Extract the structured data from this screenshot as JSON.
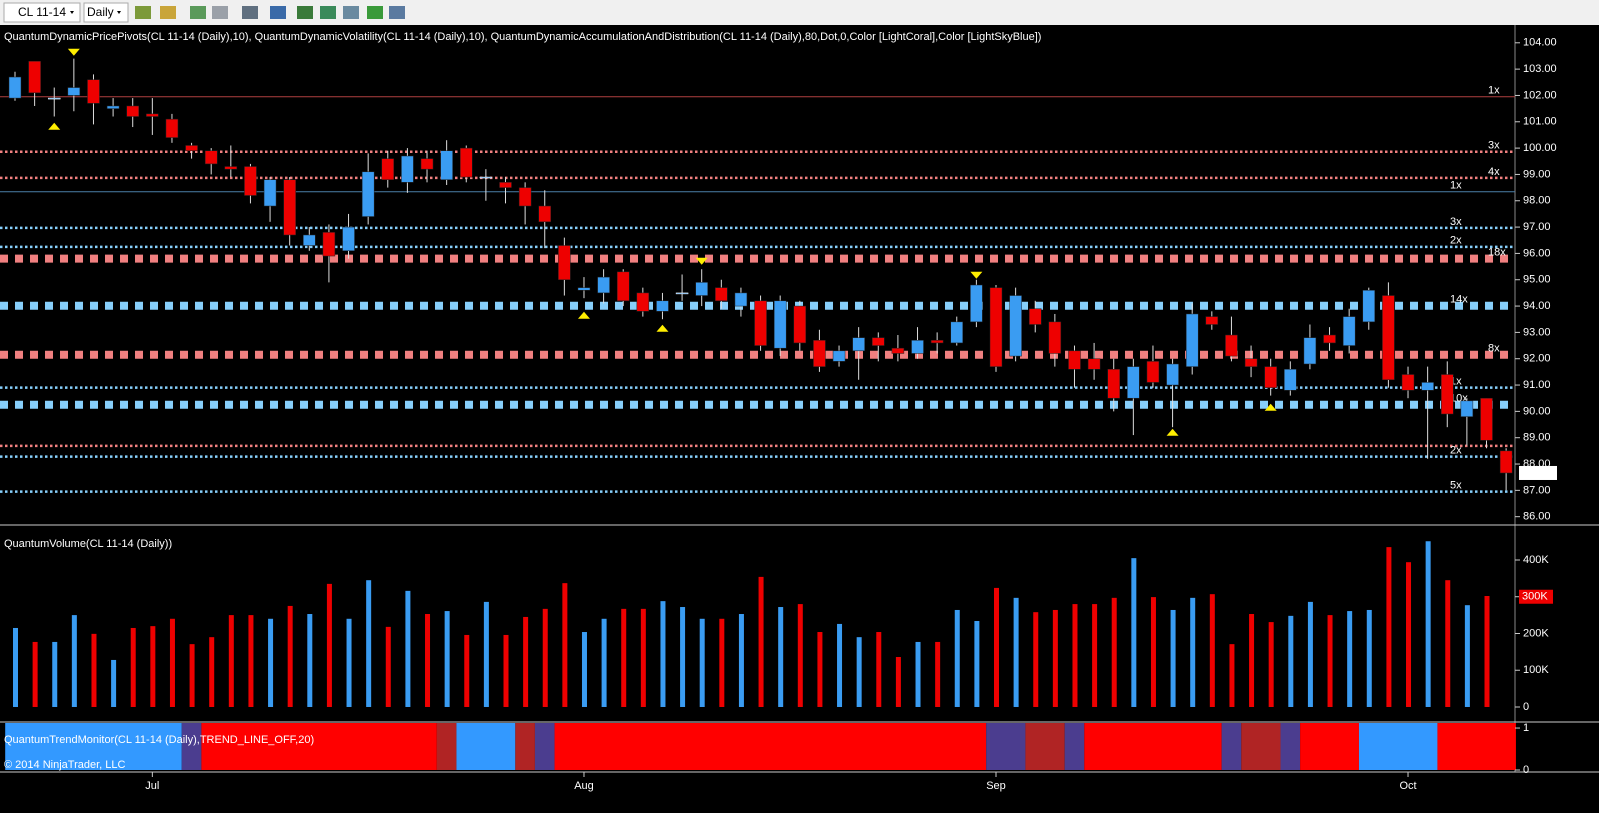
{
  "toolbar": {
    "instrument": "CL 11-14",
    "period": "Daily"
  },
  "copyright": "© 2014 NinjaTrader, LLC",
  "chart_data": [
    {
      "type": "candlestick",
      "title": "QuantumDynamicPricePivots(CL 11-14 (Daily),10), QuantumDynamicVolatility(CL 11-14 (Daily),10), QuantumDynamicAccumulationAndDistribution(CL 11-14 (Daily),80,Dot,0,Color [LightCoral],Color [LightSkyBlue])",
      "categories": [
        null,
        null,
        null,
        null,
        null,
        null,
        null,
        "Jul",
        null,
        null,
        null,
        null,
        null,
        null,
        null,
        null,
        null,
        null,
        null,
        null,
        null,
        null,
        null,
        null,
        null,
        null,
        null,
        null,
        null,
        "Aug",
        null,
        null,
        null,
        null,
        null,
        null,
        null,
        null,
        null,
        null,
        null,
        null,
        null,
        null,
        null,
        null,
        null,
        null,
        null,
        null,
        "Sep",
        null,
        null,
        null,
        null,
        null,
        null,
        null,
        null,
        null,
        null,
        null,
        null,
        null,
        null,
        null,
        null,
        null,
        null,
        null,
        null,
        "Oct",
        null,
        null,
        null,
        null,
        null
      ],
      "open": [
        101.9,
        103.3,
        101.9,
        102.0,
        102.6,
        101.5,
        101.6,
        101.3,
        101.1,
        100.1,
        99.9,
        99.3,
        99.3,
        97.8,
        98.8,
        96.3,
        96.8,
        96.1,
        97.4,
        99.6,
        98.7,
        99.6,
        98.8,
        100.0,
        98.9,
        98.7,
        98.5,
        97.8,
        96.3,
        94.6,
        94.5,
        95.3,
        94.5,
        93.8,
        94.5,
        94.4,
        94.7,
        94.0,
        94.2,
        92.4,
        94.0,
        92.7,
        91.9,
        92.3,
        92.8,
        92.4,
        92.2,
        92.7,
        92.6,
        93.4,
        94.7,
        92.1,
        93.9,
        93.4,
        92.3,
        92.0,
        91.6,
        90.5,
        91.9,
        91.0,
        91.7,
        93.6,
        92.9,
        92.0,
        91.7,
        90.8,
        91.8,
        92.9,
        92.5,
        93.4,
        94.4,
        91.4,
        90.8,
        91.4,
        89.8,
        90.5,
        88.5
      ],
      "high": [
        102.9,
        103.3,
        102.3,
        103.4,
        102.8,
        101.9,
        101.9,
        101.9,
        101.3,
        100.2,
        100.0,
        100.1,
        99.4,
        98.9,
        98.9,
        97.0,
        97.1,
        97.5,
        99.8,
        99.9,
        100.0,
        99.9,
        100.3,
        100.1,
        99.2,
        98.9,
        98.7,
        98.4,
        96.6,
        95.1,
        95.4,
        95.4,
        94.7,
        94.5,
        95.2,
        95.4,
        95.0,
        94.7,
        94.4,
        94.4,
        94.2,
        93.1,
        92.5,
        93.2,
        93.0,
        92.9,
        93.2,
        93.0,
        93.6,
        95.0,
        94.8,
        94.7,
        94.2,
        93.7,
        92.5,
        92.6,
        92.0,
        92.0,
        92.5,
        92.0,
        94.1,
        93.8,
        93.6,
        92.5,
        92.0,
        91.9,
        93.3,
        93.2,
        93.9,
        94.7,
        94.9,
        91.7,
        91.7,
        91.9,
        90.5,
        90.5,
        88.6
      ],
      "low": [
        101.8,
        101.6,
        101.2,
        101.4,
        100.9,
        101.2,
        100.8,
        100.5,
        100.2,
        99.6,
        99.0,
        98.9,
        97.9,
        97.2,
        96.3,
        96.1,
        94.9,
        95.8,
        97.1,
        98.5,
        98.3,
        98.7,
        98.6,
        98.7,
        98.0,
        97.9,
        97.1,
        96.2,
        94.4,
        94.3,
        94.1,
        94.0,
        93.6,
        93.5,
        94.2,
        94.0,
        93.9,
        93.6,
        92.3,
        92.1,
        92.3,
        91.5,
        91.7,
        91.2,
        91.9,
        91.9,
        92.0,
        92.2,
        92.5,
        93.2,
        91.5,
        91.9,
        93.0,
        91.7,
        90.9,
        91.2,
        90.0,
        89.1,
        90.9,
        89.4,
        91.4,
        93.1,
        91.9,
        91.3,
        90.6,
        90.6,
        91.6,
        92.3,
        92.2,
        93.1,
        90.9,
        90.5,
        88.2,
        89.4,
        88.7,
        88.6,
        87.0
      ],
      "close": [
        102.7,
        102.1,
        101.9,
        102.3,
        101.7,
        101.6,
        101.2,
        101.2,
        100.4,
        99.9,
        99.4,
        99.2,
        98.2,
        98.8,
        96.7,
        96.7,
        95.9,
        97.0,
        99.1,
        98.8,
        99.7,
        99.2,
        99.9,
        98.9,
        98.9,
        98.5,
        97.8,
        97.2,
        95.0,
        94.7,
        95.1,
        94.2,
        93.8,
        94.2,
        94.5,
        94.9,
        94.2,
        94.5,
        92.5,
        94.2,
        92.6,
        91.7,
        92.3,
        92.8,
        92.5,
        92.2,
        92.7,
        92.6,
        93.4,
        94.8,
        91.7,
        94.4,
        93.3,
        92.2,
        91.6,
        91.6,
        90.5,
        91.7,
        91.1,
        91.8,
        93.7,
        93.3,
        92.1,
        91.7,
        90.9,
        91.6,
        92.8,
        92.6,
        93.6,
        94.6,
        91.2,
        90.8,
        91.1,
        89.9,
        90.4,
        88.9,
        87.66
      ],
      "up_color": "#3a9cf2",
      "down_color": "#ee0000",
      "ylim": [
        85.76,
        104.6
      ],
      "yticks": [
        {
          "value": 86,
          "label": "86.00"
        },
        {
          "value": 87,
          "label": "87.00"
        },
        {
          "value": 88,
          "label": "88.00"
        },
        {
          "value": 89,
          "label": "89.00"
        },
        {
          "value": 90,
          "label": "90.00"
        },
        {
          "value": 91,
          "label": "91.00"
        },
        {
          "value": 92,
          "label": "92.00"
        },
        {
          "value": 93,
          "label": "93.00"
        },
        {
          "value": 94,
          "label": "94.00"
        },
        {
          "value": 95,
          "label": "95.00"
        },
        {
          "value": 96,
          "label": "96.00"
        },
        {
          "value": 97,
          "label": "97.00"
        },
        {
          "value": 98,
          "label": "98.00"
        },
        {
          "value": 99,
          "label": "99.00"
        },
        {
          "value": 100,
          "label": "100.00"
        },
        {
          "value": 101,
          "label": "101.00"
        },
        {
          "value": 102,
          "label": "102.00"
        },
        {
          "value": 103,
          "label": "103.00"
        },
        {
          "value": 104,
          "label": "104.00"
        }
      ],
      "levels": [
        {
          "value": 101.95,
          "style": "solid",
          "color": "#b04040",
          "label": "1x"
        },
        {
          "value": 99.86,
          "style": "dotted",
          "color": "#f08080",
          "label": "3x"
        },
        {
          "value": 98.87,
          "style": "dotted",
          "color": "#f08080",
          "label": "4x"
        },
        {
          "value": 98.34,
          "style": "solid",
          "color": "#4a7fa8",
          "label": "1x"
        },
        {
          "value": 96.97,
          "style": "dotted",
          "color": "#87cefa",
          "label": "3x"
        },
        {
          "value": 96.25,
          "style": "dotted",
          "color": "#87cefa",
          "label": "2x"
        },
        {
          "value": 95.8,
          "style": "squares",
          "color": "#f08080",
          "label": "18x"
        },
        {
          "value": 94.01,
          "style": "squares",
          "color": "#87cefa",
          "label": "14x"
        },
        {
          "value": 92.15,
          "style": "squares",
          "color": "#f08080",
          "label": "8x"
        },
        {
          "value": 90.9,
          "style": "dotted",
          "color": "#87cefa",
          "label": "1x"
        },
        {
          "value": 90.25,
          "style": "squares",
          "color": "#87cefa",
          "label": "10x"
        },
        {
          "value": 88.69,
          "style": "dotted",
          "color": "#f08080"
        },
        {
          "value": 88.28,
          "style": "dotted",
          "color": "#87cefa",
          "label": "2x"
        },
        {
          "value": 86.95,
          "style": "dotted",
          "color": "#87cefa",
          "label": "5x"
        }
      ],
      "markers": [
        {
          "index": 3,
          "value": 103.66,
          "dir": "down"
        },
        {
          "index": 35,
          "value": 95.72,
          "dir": "down"
        },
        {
          "index": 49,
          "value": 95.19,
          "dir": "down"
        },
        {
          "index": 2,
          "value": 100.81,
          "dir": "up"
        },
        {
          "index": 29,
          "value": 93.63,
          "dir": "up"
        },
        {
          "index": 33,
          "value": 93.14,
          "dir": "up"
        },
        {
          "index": 59,
          "value": 89.19,
          "dir": "up"
        },
        {
          "index": 64,
          "value": 90.14,
          "dir": "up"
        }
      ],
      "marker_color": "#ffee00",
      "last_price": 87.66
    },
    {
      "type": "volume",
      "title": "QuantumVolume(CL 11-14 (Daily))",
      "values": [
        215000,
        177000,
        177000,
        250000,
        199000,
        128000,
        215000,
        220000,
        240000,
        171000,
        190000,
        250000,
        250000,
        240000,
        275000,
        253000,
        335000,
        240000,
        345000,
        218000,
        316000,
        253000,
        261000,
        196000,
        286000,
        196000,
        245000,
        267000,
        337000,
        204000,
        240000,
        267000,
        267000,
        288000,
        272000,
        240000,
        240000,
        253000,
        354000,
        272000,
        280000,
        204000,
        226000,
        190000,
        204000,
        136000,
        177000,
        177000,
        264000,
        234000,
        324000,
        297000,
        258000,
        264000,
        280000,
        280000,
        297000,
        405000,
        299000,
        264000,
        297000,
        307000,
        171000,
        253000,
        231000,
        248000,
        286000,
        250000,
        261000,
        264000,
        435000,
        394000,
        451000,
        345000,
        277000,
        302000,
        null
      ],
      "ylim": [
        -35400,
        481600
      ],
      "yticks": [
        0,
        {
          "value": 100000,
          "label": "100K"
        },
        {
          "value": 200000,
          "label": "200K"
        },
        {
          "value": 300000,
          "label": "300K"
        },
        {
          "value": 400000,
          "label": "400K"
        }
      ],
      "current": {
        "value": 300000,
        "label": "300K"
      }
    },
    {
      "type": "trend",
      "title": "QuantumTrendMonitor(CL 11-14 (Daily),TREND_LINE_OFF,20)",
      "ylim": [
        0,
        1.12
      ],
      "yticks": [
        0,
        1
      ],
      "segments": [
        {
          "from": 0,
          "to": 8,
          "color": "#3399ff"
        },
        {
          "from": 9,
          "to": 9,
          "color": "#4b3d8f"
        },
        {
          "from": 10,
          "to": 21,
          "color": "#ff0000"
        },
        {
          "from": 22,
          "to": 22,
          "color": "#b02424"
        },
        {
          "from": 23,
          "to": 25,
          "color": "#3399ff"
        },
        {
          "from": 26,
          "to": 26,
          "color": "#b02424"
        },
        {
          "from": 27,
          "to": 27,
          "color": "#4b3d8f"
        },
        {
          "from": 28,
          "to": 49,
          "color": "#ff0000"
        },
        {
          "from": 50,
          "to": 51,
          "color": "#4b3d8f"
        },
        {
          "from": 52,
          "to": 53,
          "color": "#b02424"
        },
        {
          "from": 54,
          "to": 54,
          "color": "#4b3d8f"
        },
        {
          "from": 55,
          "to": 61,
          "color": "#ff0000"
        },
        {
          "from": 62,
          "to": 62,
          "color": "#4b3d8f"
        },
        {
          "from": 63,
          "to": 64,
          "color": "#b02424"
        },
        {
          "from": 65,
          "to": 65,
          "color": "#4b3d8f"
        },
        {
          "from": 66,
          "to": 68,
          "color": "#ff0000"
        },
        {
          "from": 69,
          "to": 72,
          "color": "#3399ff"
        },
        {
          "from": 73,
          "to": 76,
          "color": "#ff0000"
        }
      ]
    }
  ]
}
